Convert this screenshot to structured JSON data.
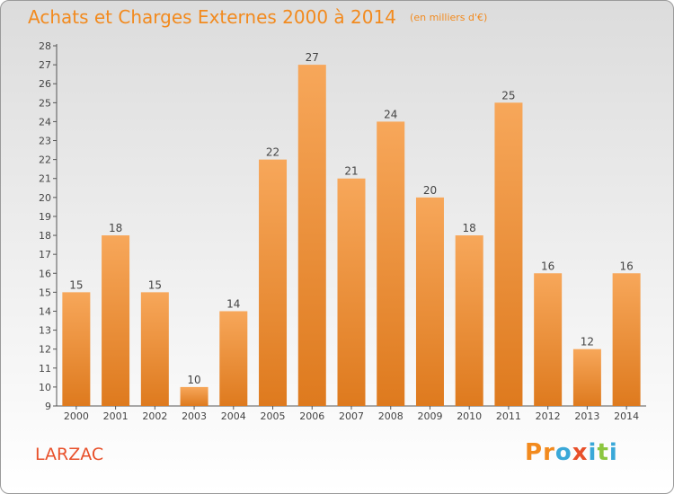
{
  "header": {
    "title": "Achats et Charges Externes 2000 à 2014",
    "unit": "(en milliers d'€)"
  },
  "footer": {
    "commune": "LARZAC",
    "logo_text": "Proxiti"
  },
  "colors": {
    "title": "#f28a1e",
    "commune": "#e8502a",
    "bar_top": "#f7a75a",
    "bar_bottom": "#de7a1e",
    "logo": [
      "#f28a1e",
      "#f28a1e",
      "#3aa8d8",
      "#e8502a",
      "#3aa8d8",
      "#8cc63f",
      "#3aa8d8"
    ]
  },
  "chart_data": {
    "type": "bar",
    "categories": [
      "2000",
      "2001",
      "2002",
      "2003",
      "2004",
      "2005",
      "2006",
      "2007",
      "2008",
      "2009",
      "2010",
      "2011",
      "2012",
      "2013",
      "2014"
    ],
    "values": [
      15,
      18,
      15,
      10,
      14,
      22,
      27,
      21,
      24,
      20,
      18,
      25,
      16,
      12,
      16
    ],
    "ylim": [
      9,
      28
    ],
    "yticks": [
      9,
      10,
      11,
      12,
      13,
      14,
      15,
      16,
      17,
      18,
      19,
      20,
      21,
      22,
      23,
      24,
      25,
      26,
      27,
      28
    ],
    "grid": false,
    "value_labels": true
  }
}
